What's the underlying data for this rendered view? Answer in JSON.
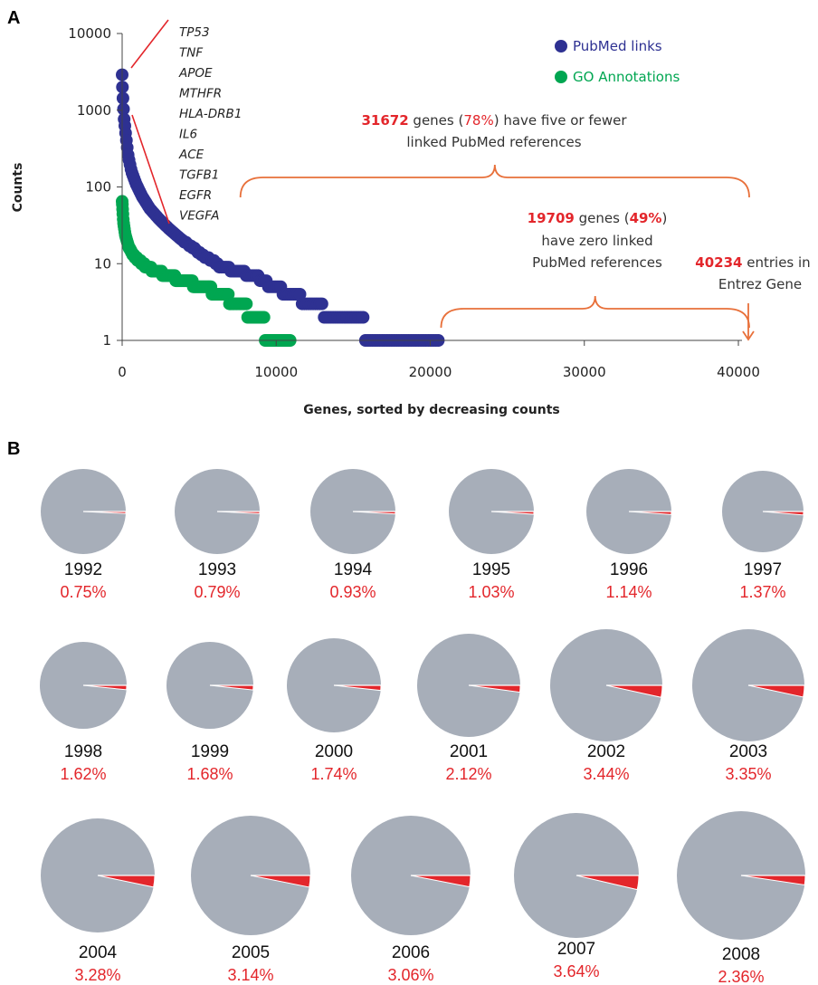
{
  "panel_a_label": "A",
  "panel_b_label": "B",
  "chart_data": [
    {
      "type": "scatter",
      "xlabel": "Genes, sorted by decreasing counts",
      "ylabel": "Counts",
      "xlim": [
        0,
        40234
      ],
      "ylim": [
        1,
        10000
      ],
      "yscale": "log",
      "x_ticks": [
        "0",
        "10000",
        "20000",
        "30000",
        "40000"
      ],
      "y_ticks": [
        "10000",
        "1000",
        "100",
        "10",
        "1"
      ],
      "series": [
        {
          "name": "PubMed links",
          "color": "#2e3192",
          "x": [
            0,
            20,
            60,
            120,
            250,
            400,
            600,
            900,
            1300,
            1800,
            2400,
            3000,
            3800,
            4600,
            5500,
            6500,
            7500,
            8600,
            9800,
            11000,
            12300,
            13800,
            15200,
            16600,
            18000,
            19300,
            20525
          ],
          "y": [
            2900,
            2000,
            1300,
            800,
            450,
            250,
            160,
            110,
            75,
            52,
            38,
            29,
            21,
            16,
            12,
            9,
            8,
            7,
            5,
            4,
            3,
            2,
            2,
            1,
            1,
            1,
            1
          ]
        },
        {
          "name": "GO Annotations",
          "color": "#00a651",
          "x": [
            0,
            30,
            80,
            200,
            400,
            700,
            1100,
            1600,
            2200,
            3000,
            4000,
            5200,
            6400,
            7600,
            8800,
            9800,
            10900
          ],
          "y": [
            65,
            50,
            35,
            24,
            17,
            13,
            11,
            9,
            8,
            7,
            6,
            5,
            4,
            3,
            2,
            1,
            1
          ]
        }
      ],
      "legend": "top-right",
      "top_genes": [
        "TP53",
        "TNF",
        "APOE",
        "MTHFR",
        "HLA-DRB1",
        "IL6",
        "ACE",
        "TGFB1",
        "EGFR",
        "VEGFA"
      ],
      "annotations": [
        {
          "num": "31672",
          "mid1": " genes (",
          "pct": "78%",
          "mid2": ") have five or fewer",
          "line2": "linked PubMed references",
          "x_range": [
            7500,
            40234
          ]
        },
        {
          "num": "19709",
          "mid1": " genes (",
          "pct": "49%",
          "mid2": ")",
          "line2": "have zero linked",
          "line3": "PubMed references",
          "x_range": [
            20525,
            40234
          ]
        },
        {
          "num": "40234",
          "mid1": " entries in",
          "line2": "Entrez Gene",
          "x": 40234
        }
      ]
    },
    {
      "type": "pie",
      "colors": {
        "rest": "#a7aeb9",
        "share": "#e3262b",
        "edge": "#ffffff"
      },
      "years": [
        {
          "year": "1992",
          "label": "0.75%",
          "value": 0.75
        },
        {
          "year": "1993",
          "label": "0.79%",
          "value": 0.79
        },
        {
          "year": "1994",
          "label": "0.93%",
          "value": 0.93
        },
        {
          "year": "1995",
          "label": "1.03%",
          "value": 1.03
        },
        {
          "year": "1996",
          "label": "1.14%",
          "value": 1.14
        },
        {
          "year": "1997",
          "label": "1.37%",
          "value": 1.37
        },
        {
          "year": "1998",
          "label": "1.62%",
          "value": 1.62
        },
        {
          "year": "1999",
          "label": "1.68%",
          "value": 1.68
        },
        {
          "year": "2000",
          "label": "1.74%",
          "value": 1.74
        },
        {
          "year": "2001",
          "label": "2.12%",
          "value": 2.12
        },
        {
          "year": "2002",
          "label": "3.44%",
          "value": 3.44
        },
        {
          "year": "2003",
          "label": "3.35%",
          "value": 3.35
        },
        {
          "year": "2004",
          "label": "3.28%",
          "value": 3.28
        },
        {
          "year": "2005",
          "label": "3.14%",
          "value": 3.14
        },
        {
          "year": "2006",
          "label": "3.06%",
          "value": 3.06
        },
        {
          "year": "2007",
          "label": "3.64%",
          "value": 3.64
        },
        {
          "year": "2008",
          "label": "2.36%",
          "value": 2.36
        }
      ]
    }
  ]
}
